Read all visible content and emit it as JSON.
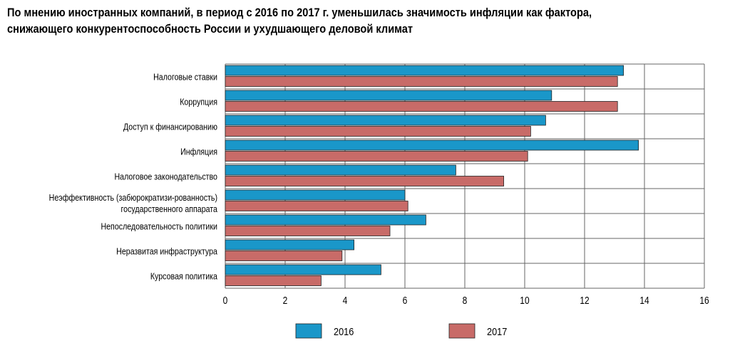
{
  "chart_data": {
    "type": "bar",
    "orientation": "horizontal",
    "title_lines": [
      "По мнению иностранных компаний, в период с 2016 по 2017 г. уменьшилась значимость инфляции как фактора,",
      "снижающего конкурентоспособность России и ухудшающего деловой климат"
    ],
    "categories": [
      "Налоговые ставки",
      "Коррупция",
      "Доступ к финансированию",
      "Инфляция",
      "Налоговое законодательство",
      "Неэффективность (забюрократизи-рованность) государственного аппарата",
      "Непоследовательность политики",
      "Неразвитая инфраструктура",
      "Курсовая политика"
    ],
    "category_label_lines": [
      [
        "Налоговые ставки"
      ],
      [
        "Коррупция"
      ],
      [
        "Доступ к финансированию"
      ],
      [
        "Инфляция"
      ],
      [
        "Налоговое законодательство"
      ],
      [
        "Неэффективность (забюрократизи-рованность)",
        "государственного аппарата"
      ],
      [
        "Непоследовательность политики"
      ],
      [
        "Неразвитая инфраструктура"
      ],
      [
        "Курсовая политика"
      ]
    ],
    "series": [
      {
        "name": "2016",
        "color": "#1a97c9",
        "values": [
          13.3,
          10.9,
          10.7,
          13.8,
          7.7,
          6.0,
          6.7,
          4.3,
          5.2
        ]
      },
      {
        "name": "2017",
        "color": "#c86b68",
        "values": [
          13.1,
          13.1,
          10.2,
          10.1,
          9.3,
          6.1,
          5.5,
          3.9,
          3.2
        ]
      }
    ],
    "xlim": [
      0,
      16
    ],
    "xticks": [
      "0",
      "2",
      "4",
      "6",
      "8",
      "10",
      "12",
      "14",
      "16"
    ],
    "grid": true,
    "legend_position": "bottom"
  }
}
